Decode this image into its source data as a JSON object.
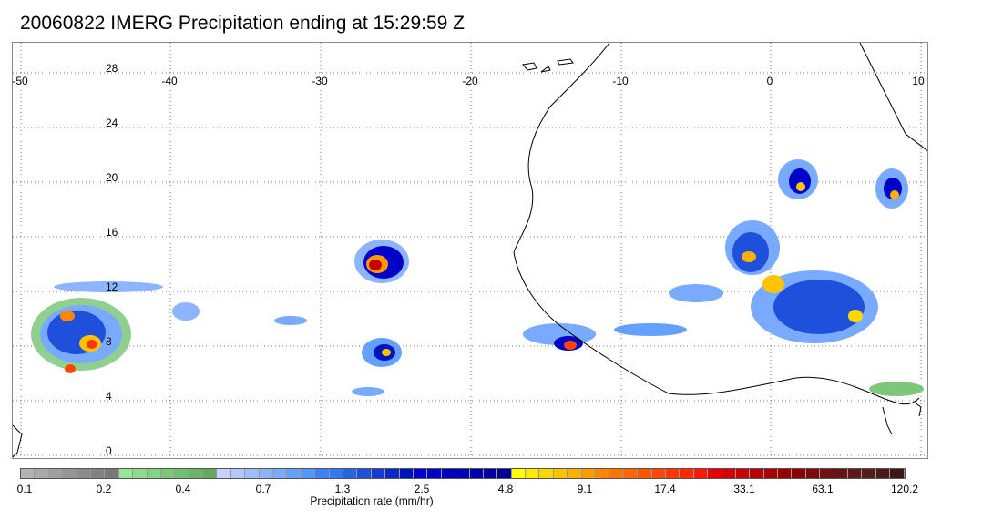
{
  "title": "20060822 IMERG Precipitation ending at 15:29:59 Z",
  "map": {
    "lon_labels": [
      "-50",
      "-40",
      "-30",
      "-20",
      "-10",
      "0",
      "10"
    ],
    "lat_labels": [
      "28",
      "24",
      "20",
      "16",
      "12",
      "8",
      "4",
      "0"
    ],
    "coastline_color": "#000000",
    "grid_style": "dotted"
  },
  "legend": {
    "title": "Precipitation rate (mm/hr)",
    "ticks": [
      "0.1",
      "0.2",
      "0.4",
      "0.7",
      "1.3",
      "2.5",
      "4.8",
      "9.1",
      "17.4",
      "33.1",
      "63.1",
      "120.2"
    ],
    "colors": [
      "#b4b4b4",
      "#aaaaaa",
      "#a0a0a0",
      "#969696",
      "#8c8c8c",
      "#828282",
      "#787878",
      "#96e696",
      "#8ddc8d",
      "#84d284",
      "#7bc87b",
      "#72be72",
      "#69b469",
      "#60aa60",
      "#c8d2ff",
      "#b4c8ff",
      "#a0beff",
      "#8cb4ff",
      "#78aaff",
      "#64a0ff",
      "#5096ff",
      "#3c82ff",
      "#3278f0",
      "#2864e6",
      "#1e50dc",
      "#143cd2",
      "#0a28c8",
      "#0014be",
      "#0000d2",
      "#0000c8",
      "#0000be",
      "#0000b4",
      "#0000aa",
      "#0000a0",
      "#000096",
      "#ffff00",
      "#ffeb00",
      "#ffd700",
      "#ffc300",
      "#ffaf00",
      "#ff9b00",
      "#ff8700",
      "#ff7300",
      "#ff6400",
      "#ff5500",
      "#ff4600",
      "#ff3700",
      "#ff2800",
      "#ff1900",
      "#e60000",
      "#d70000",
      "#c80000",
      "#b90000",
      "#aa0000",
      "#9b0000",
      "#8c0000",
      "#7d0a0a",
      "#731010",
      "#691414",
      "#5f1818",
      "#551c1c",
      "#4b1a1a",
      "#411616"
    ]
  }
}
